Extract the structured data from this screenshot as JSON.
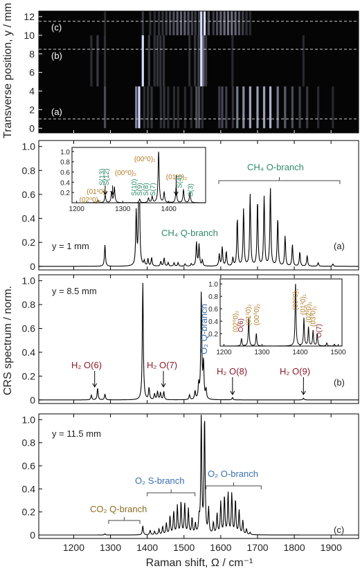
{
  "chart_data": [
    {
      "type": "heatmap",
      "ylabel": "Transverse position, y / mm",
      "yticks": [
        0,
        2,
        4,
        6,
        8,
        10,
        12
      ],
      "ylim": [
        -0.5,
        12.6
      ],
      "xlim": [
        1105,
        1975
      ],
      "row_markers": [
        {
          "y": 1.0,
          "label": "(a)"
        },
        {
          "y": 8.5,
          "label": "(b)"
        },
        {
          "y": 11.5,
          "label": "(c)"
        }
      ]
    },
    {
      "type": "line",
      "panel_label": "(a)",
      "condition": "y = 1 mm",
      "xlim": [
        1105,
        1975
      ],
      "ylim": [
        -0.03,
        1.05
      ],
      "yticks": [
        0,
        0.2,
        0.4,
        0.6,
        0.8,
        1.0
      ],
      "peaks": [
        [
          1285,
          0.18
        ],
        [
          1370,
          0.45
        ],
        [
          1378,
          1.0
        ],
        [
          1392,
          0.04
        ],
        [
          1402,
          0.06
        ],
        [
          1412,
          0.07
        ],
        [
          1437,
          0.04
        ],
        [
          1446,
          0.07
        ],
        [
          1457,
          0.03
        ],
        [
          1473,
          0.03
        ],
        [
          1484,
          0.03
        ],
        [
          1503,
          0.02
        ],
        [
          1520,
          0.02
        ],
        [
          1534,
          0.2
        ],
        [
          1541,
          0.18
        ],
        [
          1550,
          0.05
        ],
        [
          1596,
          0.1
        ],
        [
          1604,
          0.16
        ],
        [
          1615,
          0.12
        ],
        [
          1633,
          0.07
        ],
        [
          1645,
          0.4
        ],
        [
          1662,
          0.48
        ],
        [
          1680,
          0.6
        ],
        [
          1700,
          0.55
        ],
        [
          1718,
          0.58
        ],
        [
          1735,
          0.66
        ],
        [
          1755,
          0.4
        ],
        [
          1775,
          0.25
        ],
        [
          1795,
          0.18
        ],
        [
          1815,
          0.12
        ],
        [
          1835,
          0.09
        ],
        [
          1865,
          0.03
        ],
        [
          1905,
          0.02
        ]
      ],
      "annotations": [
        "CH4 Q-branch",
        "CH4 O-branch"
      ],
      "inset": {
        "xlim": [
          1190,
          1480
        ],
        "ylim": [
          0,
          1.08
        ],
        "xticks": [
          1200,
          1300,
          1400
        ],
        "yticks": [
          0.2,
          0.4,
          0.6,
          0.8,
          1.0
        ],
        "peaks": [
          [
            1246,
            0.05
          ],
          [
            1262,
            0.15
          ],
          [
            1276,
            0.2
          ],
          [
            1282,
            0.3
          ],
          [
            1337,
            0.07
          ],
          [
            1356,
            0.09
          ],
          [
            1364,
            0.12
          ],
          [
            1378,
            1.0
          ],
          [
            1390,
            0.2
          ],
          [
            1416,
            0.3
          ],
          [
            1432,
            0.25
          ],
          [
            1446,
            0.2
          ]
        ],
        "labels": [
          {
            "text": "(02⁰0)₂",
            "color": "#b07a20"
          },
          {
            "text": "(01¹0)₂",
            "color": "#b07a20"
          },
          {
            "text": "S(13)",
            "color": "#2e8b6a"
          },
          {
            "text": "S(12)",
            "color": "#2e8b6a"
          },
          {
            "text": "(00⁰0)₂",
            "color": "#b07a20"
          },
          {
            "text": "S(10)",
            "color": "#2e8b6a"
          },
          {
            "text": "S(9)",
            "color": "#2e8b6a"
          },
          {
            "text": "S(8)",
            "color": "#2e8b6a"
          },
          {
            "text": "S(7)",
            "color": "#2e8b6a"
          },
          {
            "text": "(00⁰0)₁",
            "color": "#b07a20"
          },
          {
            "text": "(01¹0)₂",
            "color": "#b07a20"
          },
          {
            "text": "S(4)",
            "color": "#2e8b6a"
          },
          {
            "text": "S(3)",
            "color": "#2e8b6a"
          }
        ]
      }
    },
    {
      "type": "line",
      "panel_label": "(b)",
      "condition": "y = 8.5 mm",
      "ylabel": "CRS spectrum / norm.",
      "xlim": [
        1105,
        1975
      ],
      "ylim": [
        -0.03,
        1.05
      ],
      "yticks": [
        0,
        0.2,
        0.4,
        0.6,
        0.8,
        1.0
      ],
      "peaks": [
        [
          1248,
          0.04
        ],
        [
          1265,
          0.1
        ],
        [
          1285,
          0.05
        ],
        [
          1388,
          1.0
        ],
        [
          1405,
          0.1
        ],
        [
          1420,
          0.05
        ],
        [
          1428,
          0.07
        ],
        [
          1436,
          0.06
        ],
        [
          1445,
          0.07
        ],
        [
          1515,
          0.04
        ],
        [
          1530,
          0.07
        ],
        [
          1540,
          0.12
        ],
        [
          1547,
          0.9
        ],
        [
          1553,
          0.3
        ],
        [
          1560,
          0.08
        ],
        [
          1632,
          0.02
        ],
        [
          1825,
          0.015
        ]
      ],
      "annotations": [
        "H2 O(6)",
        "H2 O(7)",
        "O2 Q-branch",
        "H2 O(8)",
        "H2 O(9)"
      ],
      "inset": {
        "xlim": [
          1190,
          1510
        ],
        "ylim": [
          0,
          1.08
        ],
        "xticks": [
          1200,
          1300,
          1400,
          1500
        ],
        "yticks": [
          0.2,
          0.4,
          0.6,
          0.8,
          1.0
        ],
        "peaks": [
          [
            1246,
            0.12
          ],
          [
            1265,
            0.45
          ],
          [
            1285,
            0.2
          ],
          [
            1388,
            1.0
          ],
          [
            1410,
            0.45
          ],
          [
            1422,
            0.3
          ],
          [
            1434,
            0.25
          ],
          [
            1445,
            0.2
          ],
          [
            1470,
            0.05
          ],
          [
            1490,
            0.03
          ]
        ],
        "labels": [
          {
            "text": "(02⁰0)₂",
            "color": "#b07a20"
          },
          {
            "text": "O(6)",
            "color": "#8b1a2a"
          },
          {
            "text": "(01¹0)₂",
            "color": "#b07a20"
          },
          {
            "text": "(00⁰0)₂",
            "color": "#b07a20"
          },
          {
            "text": "(00⁰0)₁",
            "color": "#b07a20"
          },
          {
            "text": "(01¹0)₁",
            "color": "#b07a20"
          },
          {
            "text": "(02²0)₁",
            "color": "#b07a20"
          },
          {
            "text": "(03³0)₁",
            "color": "#b07a20"
          },
          {
            "text": "O(7)",
            "color": "#8b1a2a"
          }
        ]
      }
    },
    {
      "type": "line",
      "panel_label": "(c)",
      "condition": "y = 11.5 mm",
      "xlabel": "Raman shift, Ω / cm⁻¹",
      "xlim": [
        1105,
        1975
      ],
      "xticks": [
        1200,
        1300,
        1400,
        1500,
        1600,
        1700,
        1800,
        1900
      ],
      "ylim": [
        -0.03,
        1.05
      ],
      "yticks": [
        0,
        0.2,
        0.4,
        0.6,
        0.8,
        1.0
      ],
      "peaks": [
        [
          1285,
          0.01
        ],
        [
          1388,
          0.08
        ],
        [
          1408,
          0.04
        ],
        [
          1420,
          0.03
        ],
        [
          1432,
          0.05
        ],
        [
          1442,
          0.07
        ],
        [
          1452,
          0.1
        ],
        [
          1462,
          0.16
        ],
        [
          1472,
          0.2
        ],
        [
          1482,
          0.25
        ],
        [
          1492,
          0.28
        ],
        [
          1502,
          0.27
        ],
        [
          1512,
          0.22
        ],
        [
          1522,
          0.14
        ],
        [
          1531,
          0.09
        ],
        [
          1541,
          0.12
        ],
        [
          1547,
          1.02
        ],
        [
          1556,
          1.02
        ],
        [
          1567,
          0.22
        ],
        [
          1580,
          0.1
        ],
        [
          1590,
          0.18
        ],
        [
          1600,
          0.28
        ],
        [
          1610,
          0.33
        ],
        [
          1620,
          0.36
        ],
        [
          1630,
          0.35
        ],
        [
          1640,
          0.3
        ],
        [
          1650,
          0.21
        ],
        [
          1660,
          0.12
        ],
        [
          1670,
          0.05
        ],
        [
          1680,
          0.02
        ]
      ],
      "annotations": [
        "CO2 Q-branch",
        "O2 S-branch",
        "O2 O-branch"
      ]
    }
  ],
  "texts": {
    "heatmap_ylabel": "Transverse position, y / mm",
    "crs_ylabel": "CRS spectrum / norm.",
    "xlabel": "Raman shift, Ω / cm⁻¹",
    "a_cond": "y = 1 mm",
    "b_cond": "y = 8.5 mm",
    "c_cond": "y = 11.5 mm",
    "a_panel": "(a)",
    "b_panel": "(b)",
    "c_panel": "(c)",
    "hm_a": "(a)",
    "hm_b": "(b)",
    "hm_c": "(c)",
    "ch4_q": "CH₄ Q-branch",
    "ch4_o": "CH₄ O-branch",
    "h2o6": "H₂ O(6)",
    "h2o7": "H₂ O(7)",
    "h2o8": "H₂ O(8)",
    "h2o9": "H₂ O(9)",
    "o2q": "O₂ Q-branch",
    "co2q": "CO₂ Q-branch",
    "o2s": "O₂ S-branch",
    "o2o": "O₂ O-branch"
  },
  "colors": {
    "ch4": "#2e8b6a",
    "h2": "#8b1a2a",
    "o2": "#3a6fb5",
    "co2": "#8a6a20",
    "inset_brown": "#b07a20"
  }
}
